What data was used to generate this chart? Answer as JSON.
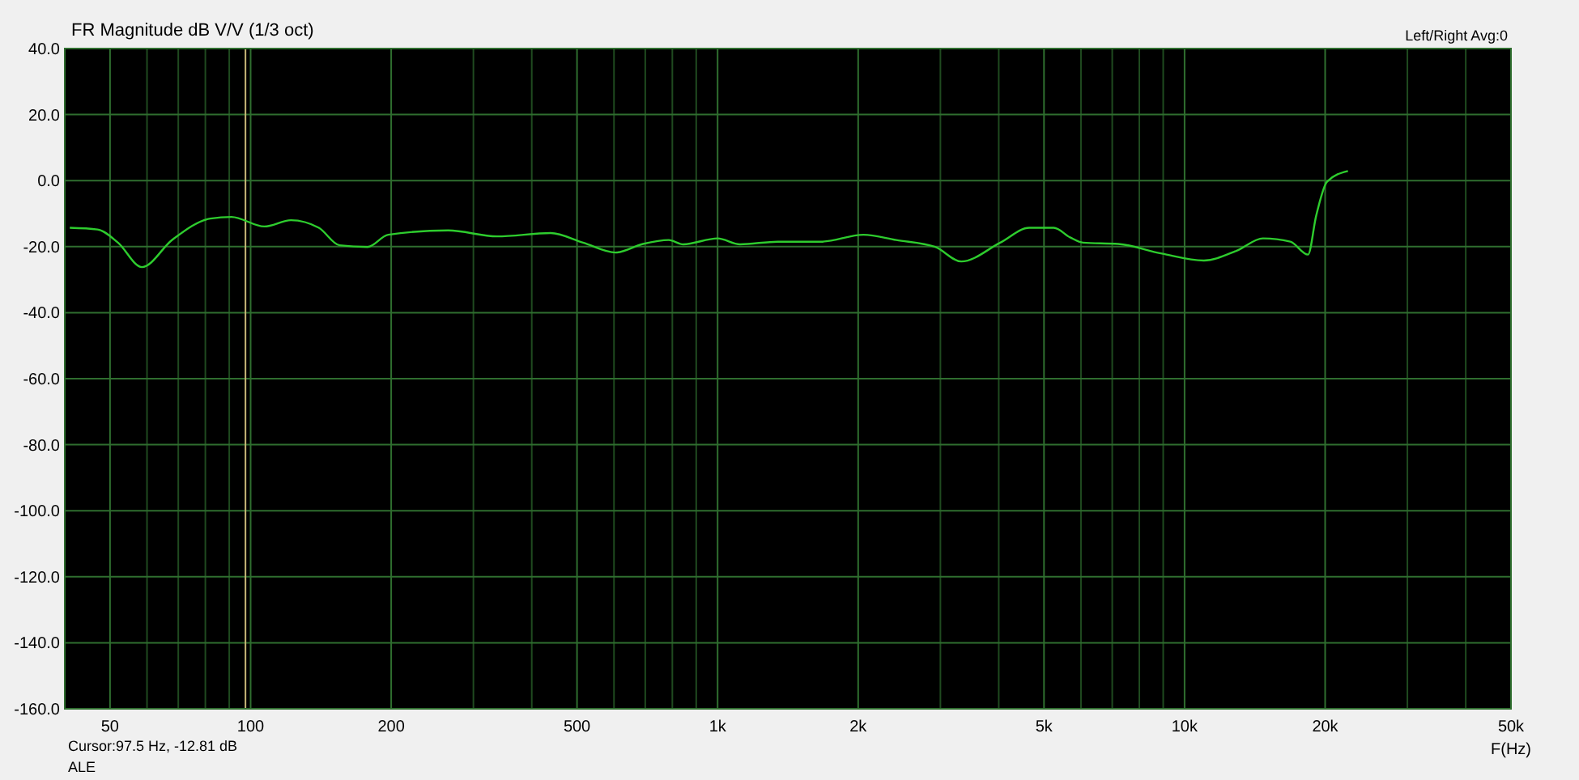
{
  "chart_data": {
    "type": "line",
    "title": "FR Magnitude dB V/V (1/3 oct)",
    "xlabel": "F(Hz)",
    "annotations": [
      "Left/Right  Avg:0",
      "Cursor:97.5 Hz, -12.81 dB",
      "ALE"
    ],
    "log": "x",
    "grid": true,
    "marker": "none",
    "line_style": "solid",
    "xlim": [
      40,
      50000
    ],
    "ylim": [
      -160,
      40
    ],
    "xticks": [
      50,
      {
        "value": 60,
        "label": null
      },
      {
        "value": 70,
        "label": null
      },
      {
        "value": 80,
        "label": null
      },
      {
        "value": 90,
        "label": null
      },
      100,
      200,
      {
        "value": 300,
        "label": null
      },
      {
        "value": 400,
        "label": null
      },
      500,
      {
        "value": 600,
        "label": null
      },
      {
        "value": 700,
        "label": null
      },
      {
        "value": 800,
        "label": null
      },
      {
        "value": 900,
        "label": null
      },
      {
        "value": 1000,
        "label": "1k"
      },
      {
        "value": 2000,
        "label": "2k"
      },
      {
        "value": 3000,
        "label": null
      },
      {
        "value": 4000,
        "label": null
      },
      {
        "value": 5000,
        "label": "5k"
      },
      {
        "value": 6000,
        "label": null
      },
      {
        "value": 7000,
        "label": null
      },
      {
        "value": 8000,
        "label": null
      },
      {
        "value": 9000,
        "label": null
      },
      {
        "value": 10000,
        "label": "10k"
      },
      {
        "value": 20000,
        "label": "20k"
      },
      {
        "value": 30000,
        "label": null
      },
      {
        "value": 40000,
        "label": null
      },
      {
        "value": 50000,
        "label": "50k"
      }
    ],
    "yticks": [
      {
        "value": -160,
        "label": "-160.0"
      },
      {
        "value": -140,
        "label": "-140.0"
      },
      {
        "value": -120,
        "label": "-120.0"
      },
      {
        "value": -100,
        "label": "-100.0"
      },
      {
        "value": -80,
        "label": "-80.0"
      },
      {
        "value": -60,
        "label": "-60.0"
      },
      {
        "value": -40,
        "label": "-40.0"
      },
      {
        "value": -20,
        "label": "-20.0"
      },
      {
        "value": 0,
        "label": "0.0"
      },
      {
        "value": 20,
        "label": "20.0"
      },
      {
        "value": 40,
        "label": "40.0"
      }
    ],
    "ref_lines": [
      {
        "axis": "x",
        "value": 97.5,
        "color": "#c8b878"
      }
    ],
    "series": [
      {
        "color": "#2ecc2e",
        "x": [
          41,
          47,
          52,
          58.5,
          68,
          82,
          91,
          107,
          122,
          140,
          155,
          178,
          197,
          265,
          337,
          439,
          515,
          605,
          692,
          786,
          844,
          1000,
          1117,
          1346,
          1666,
          2053,
          2413,
          2924,
          3326,
          4031,
          4650,
          5247,
          5687,
          6060,
          7210,
          8940,
          11000,
          12900,
          14720,
          16840,
          18380,
          19130,
          20200,
          22380
        ],
        "values": [
          -14.3,
          -14.8,
          -18.8,
          -26.2,
          -17.9,
          -11.5,
          -11,
          -13.9,
          -12,
          -14.3,
          -19.6,
          -20.1,
          -16.4,
          -15.1,
          -16.9,
          -15.9,
          -18.8,
          -21.8,
          -19.2,
          -18,
          -19.3,
          -17.5,
          -19.3,
          -18.5,
          -18.5,
          -16.4,
          -18,
          -20.1,
          -24.5,
          -18.8,
          -14.3,
          -14.3,
          -17.2,
          -18.8,
          -19.2,
          -22.1,
          -24.2,
          -21.3,
          -17.5,
          -18.5,
          -22.4,
          -10.7,
          -0.3,
          2.9
        ]
      }
    ]
  }
}
